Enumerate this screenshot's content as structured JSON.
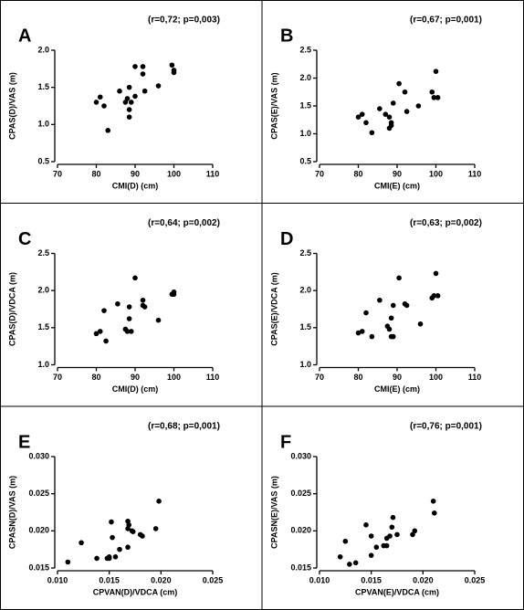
{
  "chart_data": [
    {
      "type": "scatter",
      "panel": "A",
      "annotation": "(r=0,72; p=0,003)",
      "x_label": "CMI(D) (cm)",
      "y_label": "CPAS(D)/VAS (m)",
      "x": [
        80,
        81,
        82,
        83,
        86,
        87.5,
        88,
        88.5,
        88.5,
        88.5,
        89,
        90,
        90,
        92,
        92,
        92.5,
        96,
        99.5,
        100,
        100
      ],
      "values": [
        1.3,
        1.37,
        1.25,
        0.92,
        1.45,
        1.3,
        1.35,
        1.5,
        1.2,
        1.1,
        1.3,
        1.78,
        1.38,
        1.78,
        1.68,
        1.45,
        1.52,
        1.8,
        1.73,
        1.7
      ],
      "color": "#000000",
      "xlim": [
        70,
        110
      ],
      "xticks": [
        70,
        80,
        90,
        100,
        110
      ],
      "ylim": [
        0.5,
        2.0
      ],
      "yticks": [
        0.5,
        {
          "value": 1,
          "label": "1.0"
        },
        1.5,
        {
          "value": 2,
          "label": "2.0"
        }
      ]
    },
    {
      "type": "scatter",
      "panel": "B",
      "annotation": "(r=0,67; p=0,001)",
      "x_label": "CMI(E) (cm)",
      "y_label": "CPAS(E)/VAS (m)",
      "x": [
        80,
        81,
        82,
        83.5,
        85.5,
        87,
        88,
        88.5,
        88.5,
        89,
        88,
        90.5,
        92,
        92.5,
        95.5,
        99,
        99.5,
        100,
        100.5
      ],
      "values": [
        1.3,
        1.35,
        1.2,
        1.02,
        1.45,
        1.35,
        1.3,
        1.15,
        1.2,
        1.55,
        1.1,
        1.9,
        1.75,
        1.4,
        1.5,
        1.75,
        1.65,
        2.12,
        1.65
      ],
      "color": "#000000",
      "xlim": [
        70,
        110
      ],
      "xticks": [
        70,
        80,
        90,
        100,
        110
      ],
      "ylim": [
        0.5,
        2.5
      ],
      "yticks": [
        0.5,
        {
          "value": 1,
          "label": "1.0"
        },
        1.5,
        {
          "value": 2,
          "label": "2.0"
        },
        2.5
      ]
    },
    {
      "type": "scatter",
      "panel": "C",
      "annotation": "(r=0,64; p=0,002)",
      "x_label": "CMI(D) (cm)",
      "y_label": "CPAS(D)/VDCA (m)",
      "x": [
        80,
        81,
        82,
        82.5,
        85.5,
        87.5,
        88,
        88.5,
        88.5,
        89,
        90,
        92,
        92,
        92.5,
        96,
        99.5,
        100,
        100
      ],
      "values": [
        1.42,
        1.45,
        1.73,
        1.32,
        1.82,
        1.48,
        1.45,
        1.62,
        1.78,
        1.45,
        2.17,
        1.87,
        1.8,
        1.78,
        1.6,
        1.95,
        1.98,
        1.95
      ],
      "color": "#000000",
      "xlim": [
        70,
        110
      ],
      "xticks": [
        70,
        80,
        90,
        100,
        110
      ],
      "ylim": [
        1.0,
        2.5
      ],
      "yticks": [
        {
          "value": 1,
          "label": "1.0"
        },
        1.5,
        {
          "value": 2,
          "label": "2.0"
        },
        2.5
      ]
    },
    {
      "type": "scatter",
      "panel": "D",
      "annotation": "(r=0,63; p=0,002)",
      "x_label": "CMI(E) (cm)",
      "y_label": "CPAS(E)/VDCA (m)",
      "x": [
        80,
        81,
        82,
        83.5,
        85.5,
        87.5,
        88,
        88.5,
        88.5,
        89,
        89,
        90.5,
        92,
        92.5,
        96,
        99,
        99.5,
        100,
        100.5
      ],
      "values": [
        1.43,
        1.45,
        1.7,
        1.38,
        1.87,
        1.52,
        1.48,
        1.38,
        1.63,
        1.38,
        1.8,
        2.17,
        1.82,
        1.8,
        1.55,
        1.9,
        1.93,
        2.23,
        1.93
      ],
      "color": "#000000",
      "xlim": [
        70,
        110
      ],
      "xticks": [
        70,
        80,
        90,
        100,
        110
      ],
      "ylim": [
        1.0,
        2.5
      ],
      "yticks": [
        {
          "value": 1,
          "label": "1.0"
        },
        1.5,
        {
          "value": 2,
          "label": "2.0"
        },
        2.5
      ]
    },
    {
      "type": "scatter",
      "panel": "E",
      "annotation": "(r=0,68; p=0,001)",
      "x_label": "CPVAN(D)/VDCA (cm)",
      "y_label": "CPASN(D)/VAS (m)",
      "x": [
        0.011,
        0.0123,
        0.0138,
        0.0148,
        0.015,
        0.0152,
        0.0153,
        0.0156,
        0.016,
        0.0168,
        0.0168,
        0.0168,
        0.0169,
        0.0172,
        0.018,
        0.0182,
        0.0195,
        0.0198,
        0.0173,
        0.015
      ],
      "values": [
        0.0158,
        0.0184,
        0.0163,
        0.0163,
        0.0163,
        0.0212,
        0.0191,
        0.0165,
        0.0175,
        0.0178,
        0.0203,
        0.0213,
        0.0208,
        0.02,
        0.0195,
        0.0193,
        0.0203,
        0.024,
        0.0199,
        0.0165
      ],
      "color": "#000000",
      "xlim": [
        0.01,
        0.025
      ],
      "xticks": [
        {
          "value": 0.01,
          "label": "0.010"
        },
        0.015,
        {
          "value": 0.02,
          "label": "0.020"
        },
        0.025
      ],
      "ylim": [
        0.015,
        0.03
      ],
      "yticks": [
        0.015,
        {
          "value": 0.02,
          "label": "0.020"
        },
        0.025,
        {
          "value": 0.03,
          "label": "0.030"
        }
      ]
    },
    {
      "type": "scatter",
      "panel": "F",
      "annotation": "(r=0,76; p=0,001)",
      "x_label": "CPVAN(E)/VDCA (cm)",
      "y_label": "CPASN(E)/VAS (m)",
      "x": [
        0.012,
        0.0125,
        0.0129,
        0.0135,
        0.0145,
        0.015,
        0.015,
        0.0155,
        0.0162,
        0.0165,
        0.0165,
        0.017,
        0.0168,
        0.0171,
        0.0175,
        0.019,
        0.0192,
        0.021,
        0.0211
      ],
      "values": [
        0.0165,
        0.0186,
        0.0155,
        0.0157,
        0.0208,
        0.0167,
        0.0193,
        0.0178,
        0.018,
        0.019,
        0.018,
        0.0205,
        0.0193,
        0.0218,
        0.0195,
        0.0195,
        0.02,
        0.024,
        0.0224
      ],
      "color": "#000000",
      "xlim": [
        0.01,
        0.025
      ],
      "xticks": [
        {
          "value": 0.01,
          "label": "0.010"
        },
        0.015,
        {
          "value": 0.02,
          "label": "0.020"
        },
        0.025
      ],
      "ylim": [
        0.015,
        0.03
      ],
      "yticks": [
        0.015,
        {
          "value": 0.02,
          "label": "0.020"
        },
        0.025,
        {
          "value": 0.03,
          "label": "0.030"
        }
      ]
    }
  ]
}
